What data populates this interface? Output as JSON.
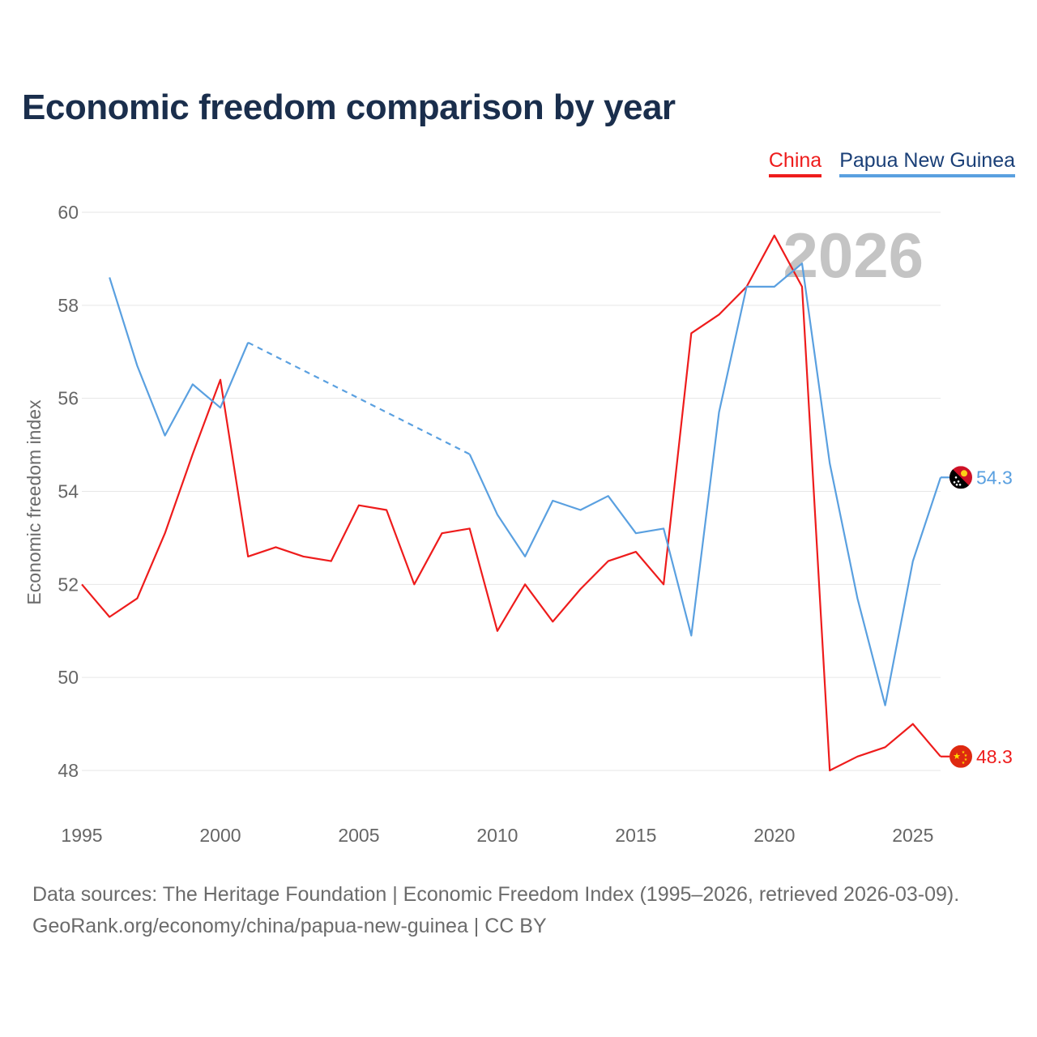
{
  "title": "Economic freedom comparison by year",
  "legend": {
    "china": "China",
    "png": "Papua New Guinea"
  },
  "footer": {
    "line1": "Data sources: The Heritage Foundation | Economic Freedom Index (1995–2026, retrieved 2026-03-09).",
    "line2": "GeoRank.org/economy/china/papua-new-guinea | CC BY"
  },
  "chart_data": {
    "type": "line",
    "title": "Economic freedom comparison by year",
    "xlabel": "",
    "ylabel": "Economic freedom index",
    "xlim": [
      1995,
      2026
    ],
    "ylim": [
      47.5,
      60
    ],
    "xticks": [
      1995,
      2000,
      2005,
      2010,
      2015,
      2020,
      2025
    ],
    "yticks": [
      48,
      50,
      52,
      54,
      56,
      58,
      60
    ],
    "grid": true,
    "legend_position": "top-right",
    "watermark_year": "2026",
    "series": [
      {
        "name": "China",
        "color": "#ee1c1c",
        "end_label": "48.3",
        "flag": "china-flag",
        "points": [
          [
            1995,
            52.0
          ],
          [
            1996,
            51.3
          ],
          [
            1997,
            51.7
          ],
          [
            1998,
            53.1
          ],
          [
            1999,
            54.8
          ],
          [
            2000,
            56.4
          ],
          [
            2001,
            52.6
          ],
          [
            2002,
            52.8
          ],
          [
            2003,
            52.6
          ],
          [
            2004,
            52.5
          ],
          [
            2005,
            53.7
          ],
          [
            2006,
            53.6
          ],
          [
            2007,
            52.0
          ],
          [
            2008,
            53.1
          ],
          [
            2009,
            53.2
          ],
          [
            2010,
            51.0
          ],
          [
            2011,
            52.0
          ],
          [
            2012,
            51.2
          ],
          [
            2013,
            51.9
          ],
          [
            2014,
            52.5
          ],
          [
            2015,
            52.7
          ],
          [
            2016,
            52.0
          ],
          [
            2017,
            57.4
          ],
          [
            2018,
            57.8
          ],
          [
            2019,
            58.4
          ],
          [
            2020,
            59.5
          ],
          [
            2021,
            58.4
          ],
          [
            2022,
            48.0
          ],
          [
            2023,
            48.3
          ],
          [
            2024,
            48.5
          ],
          [
            2025,
            49.0
          ],
          [
            2026,
            48.3
          ]
        ]
      },
      {
        "name": "Papua New Guinea",
        "color": "#5aa0e0",
        "end_label": "54.3",
        "flag": "png-flag",
        "points": [
          [
            1996,
            58.6
          ],
          [
            1997,
            56.7
          ],
          [
            1998,
            55.2
          ],
          [
            1999,
            56.3
          ],
          [
            2000,
            55.8
          ],
          [
            2001,
            57.2
          ],
          [
            2009,
            54.8
          ],
          [
            2010,
            53.5
          ],
          [
            2011,
            52.6
          ],
          [
            2012,
            53.8
          ],
          [
            2013,
            53.6
          ],
          [
            2014,
            53.9
          ],
          [
            2015,
            53.1
          ],
          [
            2016,
            53.2
          ],
          [
            2017,
            50.9
          ],
          [
            2018,
            55.7
          ],
          [
            2019,
            58.4
          ],
          [
            2020,
            58.4
          ],
          [
            2021,
            58.9
          ],
          [
            2022,
            54.6
          ],
          [
            2023,
            51.7
          ],
          [
            2024,
            49.4
          ],
          [
            2025,
            52.5
          ],
          [
            2026,
            54.3
          ]
        ],
        "dashed_gaps": [
          [
            2001,
            2009
          ]
        ]
      }
    ]
  }
}
